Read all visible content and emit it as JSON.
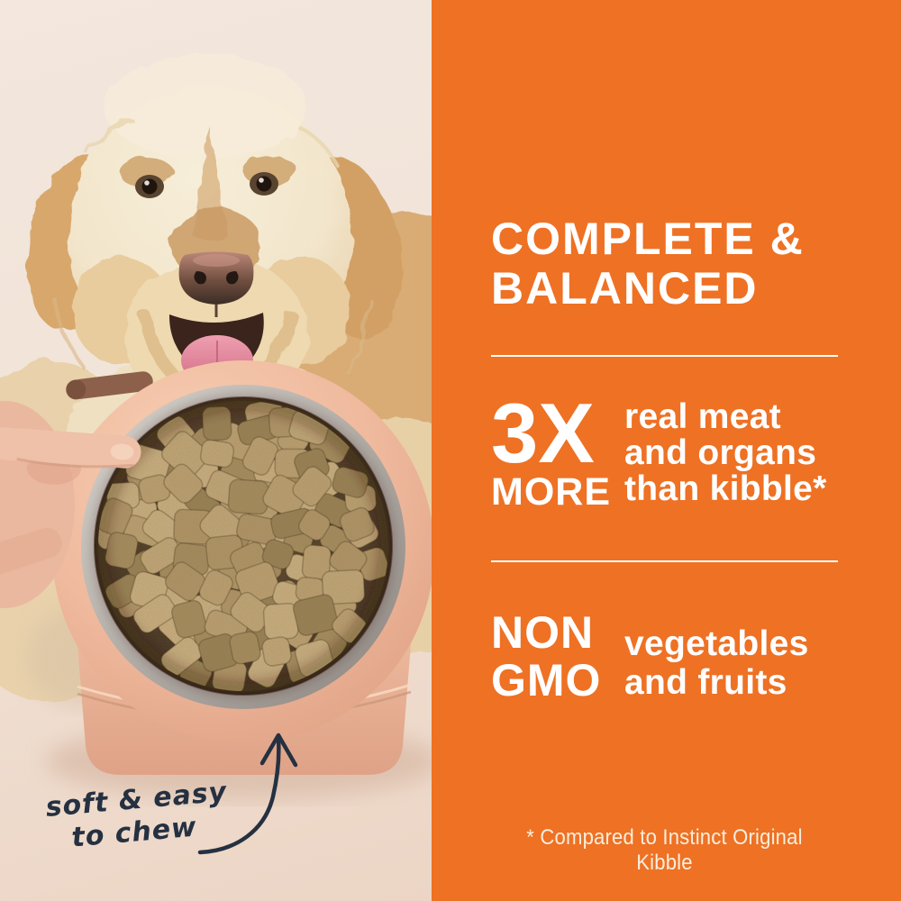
{
  "photo_note": {
    "line1": "soft & easy",
    "line2": "to chew"
  },
  "info": {
    "headline": {
      "line1": "COMPLETE &",
      "line2": "BALANCED"
    },
    "stat_meat": {
      "value": "3X",
      "qualifier": "MORE",
      "desc_line1": "real meat",
      "desc_line2": "and organs",
      "desc_line3": "than kibble*"
    },
    "stat_gmo": {
      "value_line1": "NON",
      "value_line2": "GMO",
      "desc_line1": "vegetables",
      "desc_line2": "and fruits"
    },
    "footnote": "* Compared to Instinct Original Kibble"
  },
  "palette": {
    "orange": "#ee7124",
    "text_white": "#ffffff",
    "footnote_cream": "#f8eedd",
    "photo_bg_top": "#f3e7de",
    "photo_bg_bottom": "#ecd5c5",
    "ink": "#253141",
    "bowl_pink": "#efb99d",
    "bowl_pink_light": "#f7cfb4",
    "bowl_pink_dark": "#dfa083",
    "metal_light": "#d8d3cd",
    "metal_dark": "#8e8680",
    "bowl_cavity": "#503a2a",
    "fur_cream": "#f2e5cb",
    "fur_mid": "#e6cda3",
    "fur_apricot": "#d9ac76",
    "fur_dark": "#bf9058",
    "skin": "#eab89f",
    "nugget_colors": [
      "#ccb183",
      "#bda173",
      "#b19568",
      "#a68c5f",
      "#c3a87a",
      "#998055"
    ]
  }
}
